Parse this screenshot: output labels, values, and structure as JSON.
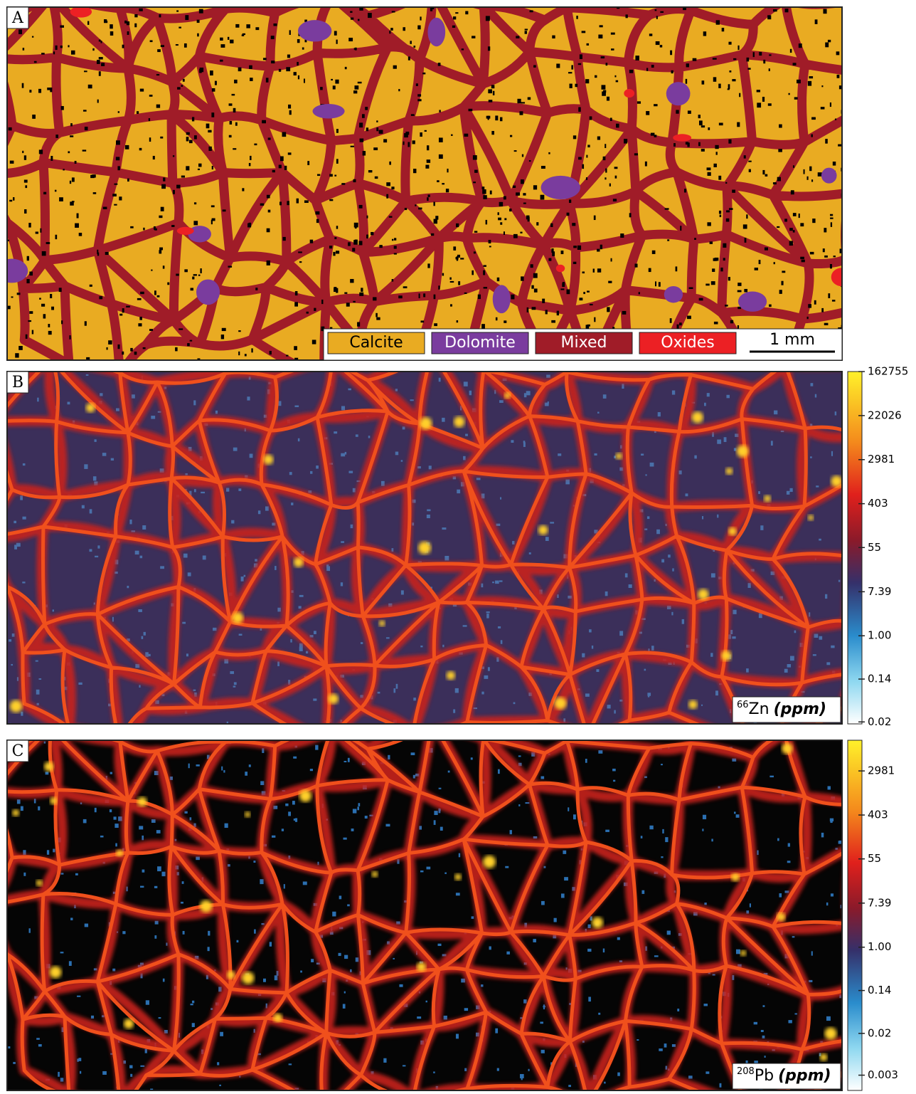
{
  "panels": [
    {
      "label": "A",
      "legend": [
        {
          "name": "Calcite",
          "color": "#e9ab22"
        },
        {
          "name": "Dolomite",
          "color": "#7a3c9e"
        },
        {
          "name": "Mixed",
          "color": "#a01c28"
        },
        {
          "name": "Oxides",
          "color": "#ec2024"
        }
      ],
      "scale_bar": "1 mm"
    },
    {
      "label": "B",
      "isotope": "66",
      "element": "Zn",
      "unit": "(ppm)",
      "colorbar": {
        "log": true,
        "lim": [
          0.0183,
          162755
        ],
        "ticks": [
          162755,
          22026,
          2981,
          403,
          55,
          7.39,
          {
            "value": 1,
            "label": "1.00"
          },
          0.14,
          0.02
        ]
      }
    },
    {
      "label": "C",
      "isotope": "208",
      "element": "Pb",
      "unit": "(ppm)",
      "colorbar": {
        "log": true,
        "lim": [
          0.0015,
          12000
        ],
        "ticks": [
          2981,
          403,
          55,
          7.39,
          {
            "value": 1,
            "label": "1.00"
          },
          0.14,
          0.02,
          0.003
        ]
      }
    }
  ]
}
